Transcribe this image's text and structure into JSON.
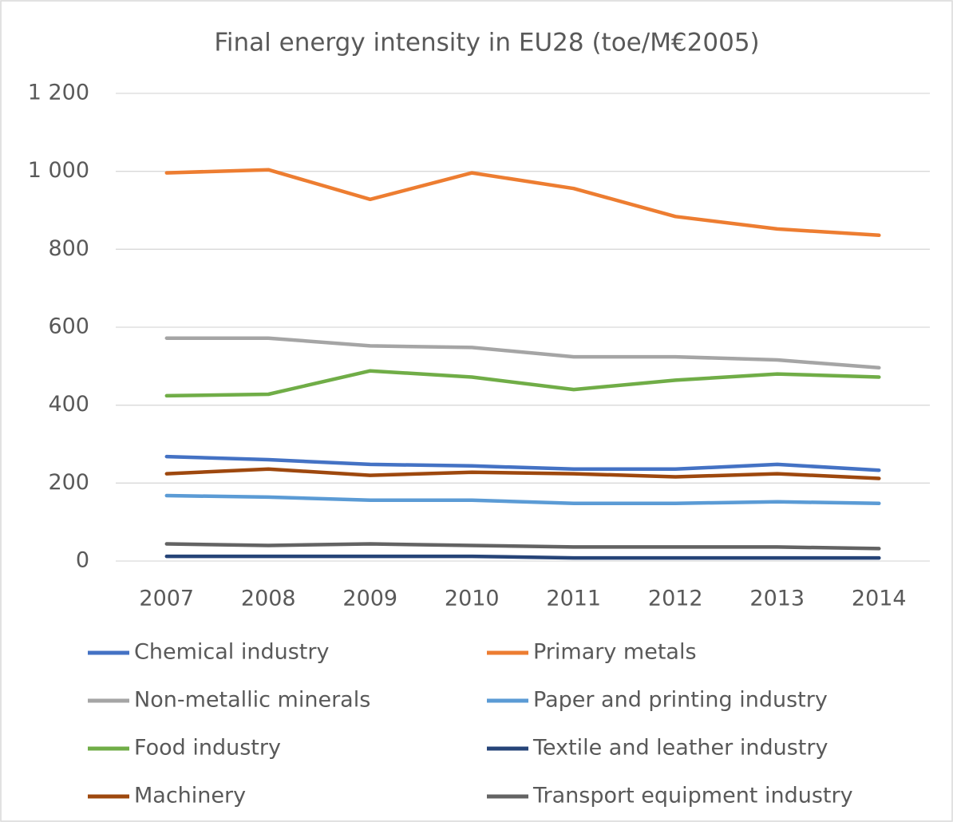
{
  "chart_data": {
    "type": "line",
    "title": "Final energy intensity in EU28 (toe/M€2005)",
    "categories": [
      "2007",
      "2008",
      "2009",
      "2010",
      "2011",
      "2012",
      "2013",
      "2014"
    ],
    "series": [
      {
        "name": "Chemical industry",
        "color": "#4472c4",
        "values": [
          268,
          260,
          248,
          244,
          236,
          236,
          248,
          233
        ]
      },
      {
        "name": "Primary metals",
        "color": "#ed7d31",
        "values": [
          996,
          1004,
          928,
          996,
          956,
          884,
          852,
          836
        ]
      },
      {
        "name": "Non-metallic minerals",
        "color": "#a5a5a5",
        "values": [
          572,
          572,
          552,
          548,
          524,
          524,
          516,
          496
        ]
      },
      {
        "name": "Paper and printing industry",
        "color": "#5b9bd5",
        "values": [
          168,
          164,
          156,
          156,
          148,
          148,
          152,
          148
        ]
      },
      {
        "name": "Food industry",
        "color": "#70ad47",
        "values": [
          424,
          428,
          488,
          472,
          440,
          464,
          480,
          472
        ]
      },
      {
        "name": "Textile and leather industry",
        "color": "#264478",
        "values": [
          12,
          12,
          12,
          12,
          8,
          8,
          8,
          8
        ]
      },
      {
        "name": "Machinery",
        "color": "#9e480e",
        "values": [
          224,
          236,
          220,
          228,
          224,
          216,
          224,
          212
        ]
      },
      {
        "name": "Transport equipment industry",
        "color": "#636363",
        "values": [
          44,
          40,
          44,
          40,
          36,
          36,
          36,
          32
        ]
      }
    ],
    "ylim": [
      0,
      1200
    ],
    "yticks": [
      0,
      200,
      400,
      600,
      800,
      {
        "value": 1000,
        "label": "1 000"
      },
      {
        "value": 1200,
        "label": "1 200"
      }
    ],
    "grid": true,
    "legend": "bottom"
  }
}
